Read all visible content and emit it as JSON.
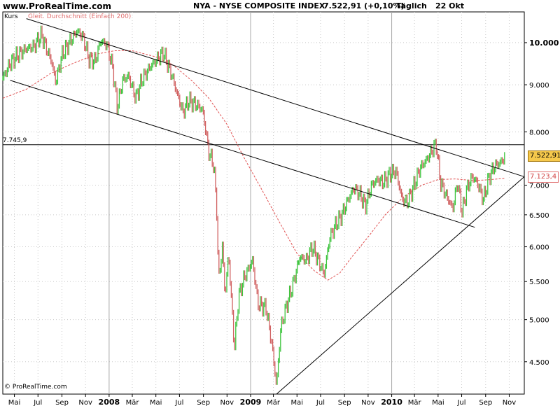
{
  "header": {
    "site": "www.ProRealTime.com",
    "title": "NYA - NYSE COMPOSITE INDEX",
    "value": "7.522,91 (+0,10%)",
    "period": "Täglich",
    "date": "22 Okt"
  },
  "legend": {
    "series1": "Kurs",
    "series2": "Gleit. Durchschnitt (Einfach 200)"
  },
  "footer": {
    "copyright": "© ProRealTime.com"
  },
  "colors": {
    "up": "#3cc43c",
    "down": "#d06060",
    "ma": "#e05050",
    "trend": "#000000",
    "grid": "#c8c8c8",
    "price_tag": "#f6c94c"
  },
  "chart_data": {
    "type": "line",
    "title": "NYA - NYSE COMPOSITE INDEX",
    "y_scale": "log",
    "ylim": [
      4150,
      10800
    ],
    "y_ticks": [
      {
        "value": 4500,
        "label": "4.500"
      },
      {
        "value": 5000,
        "label": "5.000"
      },
      {
        "value": 5500,
        "label": "5.500"
      },
      {
        "value": 6000,
        "label": "6.000"
      },
      {
        "value": 6500,
        "label": "6.500"
      },
      {
        "value": 7000,
        "label": "7.000"
      },
      {
        "value": 8000,
        "label": "8.000"
      },
      {
        "value": 9000,
        "label": "9.000"
      },
      {
        "value": 10000,
        "label": "10.000"
      }
    ],
    "bold_ticks": [
      10000
    ],
    "x_ticks": [
      {
        "date": "2007-05-01",
        "label": "Mai"
      },
      {
        "date": "2007-07-01",
        "label": "Jul"
      },
      {
        "date": "2007-09-01",
        "label": "Sep"
      },
      {
        "date": "2007-11-01",
        "label": "Nov"
      },
      {
        "date": "2008-01-01",
        "label": "2008",
        "bold": true
      },
      {
        "date": "2008-03-01",
        "label": "Mär"
      },
      {
        "date": "2008-05-01",
        "label": "Mai"
      },
      {
        "date": "2008-07-01",
        "label": "Jul"
      },
      {
        "date": "2008-09-01",
        "label": "Sep"
      },
      {
        "date": "2008-11-01",
        "label": "Nov"
      },
      {
        "date": "2009-01-01",
        "label": "2009",
        "bold": true
      },
      {
        "date": "2009-03-01",
        "label": "Mär"
      },
      {
        "date": "2009-05-01",
        "label": "Mai"
      },
      {
        "date": "2009-07-01",
        "label": "Jul"
      },
      {
        "date": "2009-09-01",
        "label": "Sep"
      },
      {
        "date": "2009-11-01",
        "label": "Nov"
      },
      {
        "date": "2010-01-01",
        "label": "2010",
        "bold": true
      },
      {
        "date": "2010-03-01",
        "label": "Mär"
      },
      {
        "date": "2010-05-01",
        "label": "Mai"
      },
      {
        "date": "2010-07-01",
        "label": "Jul"
      },
      {
        "date": "2010-09-01",
        "label": "Sep"
      },
      {
        "date": "2010-11-01",
        "label": "Nov"
      }
    ],
    "xlim": [
      "2007-04-01",
      "2010-12-10"
    ],
    "series": [
      {
        "name": "Kurs",
        "points": [
          [
            "2007-04-01",
            9150
          ],
          [
            "2007-04-20",
            9500
          ],
          [
            "2007-05-10",
            9700
          ],
          [
            "2007-06-01",
            9850
          ],
          [
            "2007-06-20",
            9900
          ],
          [
            "2007-07-10",
            10200
          ],
          [
            "2007-07-25",
            9800
          ],
          [
            "2007-08-05",
            9550
          ],
          [
            "2007-08-16",
            9050
          ],
          [
            "2007-09-01",
            9700
          ],
          [
            "2007-09-20",
            10000
          ],
          [
            "2007-10-10",
            10300
          ],
          [
            "2007-10-25",
            10150
          ],
          [
            "2007-11-10",
            9600
          ],
          [
            "2007-11-26",
            9550
          ],
          [
            "2007-12-10",
            10050
          ],
          [
            "2007-12-26",
            9950
          ],
          [
            "2008-01-10",
            9400
          ],
          [
            "2008-01-22",
            8500
          ],
          [
            "2008-02-05",
            9100
          ],
          [
            "2008-02-20",
            9200
          ],
          [
            "2008-03-10",
            8700
          ],
          [
            "2008-03-25",
            9100
          ],
          [
            "2008-04-15",
            9400
          ],
          [
            "2008-05-05",
            9600
          ],
          [
            "2008-05-20",
            9750
          ],
          [
            "2008-06-10",
            9250
          ],
          [
            "2008-06-25",
            8800
          ],
          [
            "2008-07-10",
            8400
          ],
          [
            "2008-07-25",
            8650
          ],
          [
            "2008-08-15",
            8550
          ],
          [
            "2008-08-30",
            8450
          ],
          [
            "2008-09-15",
            7600
          ],
          [
            "2008-09-28",
            7350
          ],
          [
            "2008-10-06",
            6500
          ],
          [
            "2008-10-10",
            5500
          ],
          [
            "2008-10-20",
            6000
          ],
          [
            "2008-10-27",
            5300
          ],
          [
            "2008-11-05",
            5900
          ],
          [
            "2008-11-20",
            4650
          ],
          [
            "2008-12-01",
            5300
          ],
          [
            "2008-12-15",
            5550
          ],
          [
            "2009-01-06",
            5800
          ],
          [
            "2009-01-20",
            5200
          ],
          [
            "2009-02-10",
            5150
          ],
          [
            "2009-02-25",
            4700
          ],
          [
            "2009-03-09",
            4230
          ],
          [
            "2009-03-20",
            4900
          ],
          [
            "2009-04-05",
            5200
          ],
          [
            "2009-04-20",
            5450
          ],
          [
            "2009-05-08",
            5850
          ],
          [
            "2009-05-25",
            5800
          ],
          [
            "2009-06-10",
            6000
          ],
          [
            "2009-06-25",
            5800
          ],
          [
            "2009-07-10",
            5600
          ],
          [
            "2009-07-25",
            6150
          ],
          [
            "2009-08-10",
            6350
          ],
          [
            "2009-08-25",
            6500
          ],
          [
            "2009-09-10",
            6750
          ],
          [
            "2009-09-25",
            6950
          ],
          [
            "2009-10-10",
            6850
          ],
          [
            "2009-10-25",
            6650
          ],
          [
            "2009-11-10",
            7000
          ],
          [
            "2009-11-25",
            7100
          ],
          [
            "2009-12-10",
            7050
          ],
          [
            "2009-12-28",
            7200
          ],
          [
            "2010-01-12",
            7250
          ],
          [
            "2010-01-28",
            6750
          ],
          [
            "2010-02-10",
            6700
          ],
          [
            "2010-02-25",
            6950
          ],
          [
            "2010-03-15",
            7300
          ],
          [
            "2010-04-05",
            7500
          ],
          [
            "2010-04-20",
            7700
          ],
          [
            "2010-04-26",
            7750
          ],
          [
            "2010-05-07",
            7050
          ],
          [
            "2010-05-20",
            6850
          ],
          [
            "2010-06-08",
            6600
          ],
          [
            "2010-06-20",
            7050
          ],
          [
            "2010-07-02",
            6550
          ],
          [
            "2010-07-15",
            6950
          ],
          [
            "2010-07-28",
            7150
          ],
          [
            "2010-08-10",
            7050
          ],
          [
            "2010-08-26",
            6750
          ],
          [
            "2010-09-10",
            7150
          ],
          [
            "2010-09-25",
            7350
          ],
          [
            "2010-10-08",
            7400
          ],
          [
            "2010-10-22",
            7522.91
          ]
        ]
      },
      {
        "name": "Gleit. Durchschnitt (Einfach 200)",
        "points": [
          [
            "2007-04-01",
            8700
          ],
          [
            "2007-06-01",
            8900
          ],
          [
            "2007-08-01",
            9250
          ],
          [
            "2007-10-01",
            9500
          ],
          [
            "2007-12-01",
            9720
          ],
          [
            "2008-01-15",
            9800
          ],
          [
            "2008-03-01",
            9800
          ],
          [
            "2008-05-01",
            9650
          ],
          [
            "2008-06-15",
            9450
          ],
          [
            "2008-08-01",
            9100
          ],
          [
            "2008-09-15",
            8700
          ],
          [
            "2008-11-01",
            8150
          ],
          [
            "2008-12-15",
            7500
          ],
          [
            "2009-02-01",
            6900
          ],
          [
            "2009-03-15",
            6400
          ],
          [
            "2009-05-01",
            5900
          ],
          [
            "2009-06-15",
            5650
          ],
          [
            "2009-07-20",
            5520
          ],
          [
            "2009-08-20",
            5620
          ],
          [
            "2009-09-20",
            5850
          ],
          [
            "2009-11-01",
            6150
          ],
          [
            "2009-12-15",
            6500
          ],
          [
            "2010-02-01",
            6800
          ],
          [
            "2010-03-20",
            7000
          ],
          [
            "2010-05-01",
            7100
          ],
          [
            "2010-06-15",
            7110
          ],
          [
            "2010-08-01",
            7080
          ],
          [
            "2010-09-15",
            7100
          ],
          [
            "2010-10-22",
            7123.4
          ]
        ]
      }
    ],
    "trendlines": [
      {
        "from": [
          "2007-06-01",
          10620
        ],
        "to": [
          "2010-12-10",
          7150
        ]
      },
      {
        "from": [
          "2007-04-20",
          9100
        ],
        "to": [
          "2010-08-04",
          6300
        ]
      },
      {
        "from": [
          "2009-03-09",
          4150
        ],
        "to": [
          "2010-12-10",
          7150
        ]
      }
    ],
    "level": {
      "value": 7745.9,
      "label": "7.745,9"
    },
    "last_price": {
      "value": 7522.91,
      "label": "7.522,91"
    },
    "last_ma": {
      "value": 7123.4,
      "label": "7.123,4"
    }
  }
}
